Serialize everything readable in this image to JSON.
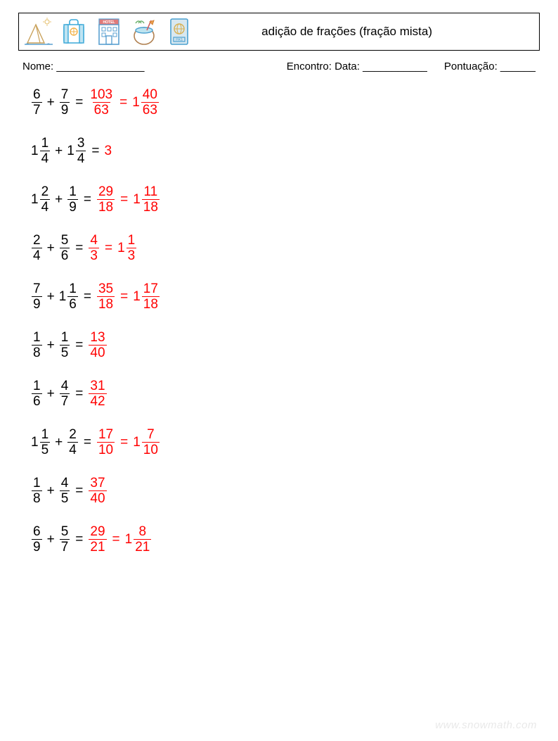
{
  "header": {
    "title": "adição de frações (fração mista)",
    "title_fontsize": 17,
    "border_color": "#000000"
  },
  "info": {
    "name_label": "Nome: _______________",
    "date_label": "Encontro: Data: ___________",
    "score_label": "Pontuação: ______"
  },
  "colors": {
    "question": "#000000",
    "answer": "#ff0000",
    "background": "#ffffff",
    "watermark": "#e9e9e9"
  },
  "typography": {
    "problem_fontsize": 19,
    "info_fontsize": 15,
    "font_family": "Arial"
  },
  "icons": [
    {
      "name": "pyramid-icon",
      "stroke": "#c9a15a",
      "accent": "#e8c57a"
    },
    {
      "name": "suitcase-icon",
      "stroke": "#3aa8d8",
      "accent": "#f2b24a"
    },
    {
      "name": "hotel-icon",
      "stroke": "#5aa0d0",
      "accent": "#e07a7a",
      "text": "HOTEL"
    },
    {
      "name": "coconut-drink-icon",
      "stroke": "#4aa0d0",
      "accent": "#6bb06b"
    },
    {
      "name": "passport-icon",
      "stroke": "#4aa0d0",
      "accent": "#d8b050",
      "text": "PAS"
    }
  ],
  "problems": [
    {
      "a": {
        "w": null,
        "n": 6,
        "d": 7
      },
      "b": {
        "w": null,
        "n": 7,
        "d": 9
      },
      "ans_improper": {
        "n": 103,
        "d": 63
      },
      "ans_mixed": {
        "w": 1,
        "n": 40,
        "d": 63
      }
    },
    {
      "a": {
        "w": 1,
        "n": 1,
        "d": 4
      },
      "b": {
        "w": 1,
        "n": 3,
        "d": 4
      },
      "ans_integer": 3
    },
    {
      "a": {
        "w": 1,
        "n": 2,
        "d": 4
      },
      "b": {
        "w": null,
        "n": 1,
        "d": 9
      },
      "ans_improper": {
        "n": 29,
        "d": 18
      },
      "ans_mixed": {
        "w": 1,
        "n": 11,
        "d": 18
      }
    },
    {
      "a": {
        "w": null,
        "n": 2,
        "d": 4
      },
      "b": {
        "w": null,
        "n": 5,
        "d": 6
      },
      "ans_improper": {
        "n": 4,
        "d": 3
      },
      "ans_mixed": {
        "w": 1,
        "n": 1,
        "d": 3
      }
    },
    {
      "a": {
        "w": null,
        "n": 7,
        "d": 9
      },
      "b": {
        "w": 1,
        "n": 1,
        "d": 6
      },
      "ans_improper": {
        "n": 35,
        "d": 18
      },
      "ans_mixed": {
        "w": 1,
        "n": 17,
        "d": 18
      }
    },
    {
      "a": {
        "w": null,
        "n": 1,
        "d": 8
      },
      "b": {
        "w": null,
        "n": 1,
        "d": 5
      },
      "ans_improper": {
        "n": 13,
        "d": 40
      }
    },
    {
      "a": {
        "w": null,
        "n": 1,
        "d": 6
      },
      "b": {
        "w": null,
        "n": 4,
        "d": 7
      },
      "ans_improper": {
        "n": 31,
        "d": 42
      }
    },
    {
      "a": {
        "w": 1,
        "n": 1,
        "d": 5
      },
      "b": {
        "w": null,
        "n": 2,
        "d": 4
      },
      "ans_improper": {
        "n": 17,
        "d": 10
      },
      "ans_mixed": {
        "w": 1,
        "n": 7,
        "d": 10
      }
    },
    {
      "a": {
        "w": null,
        "n": 1,
        "d": 8
      },
      "b": {
        "w": null,
        "n": 4,
        "d": 5
      },
      "ans_improper": {
        "n": 37,
        "d": 40
      }
    },
    {
      "a": {
        "w": null,
        "n": 6,
        "d": 9
      },
      "b": {
        "w": null,
        "n": 5,
        "d": 7
      },
      "ans_improper": {
        "n": 29,
        "d": 21
      },
      "ans_mixed": {
        "w": 1,
        "n": 8,
        "d": 21
      }
    }
  ],
  "symbols": {
    "plus": "+",
    "equals": "="
  },
  "watermark": "www.snowmath.com"
}
